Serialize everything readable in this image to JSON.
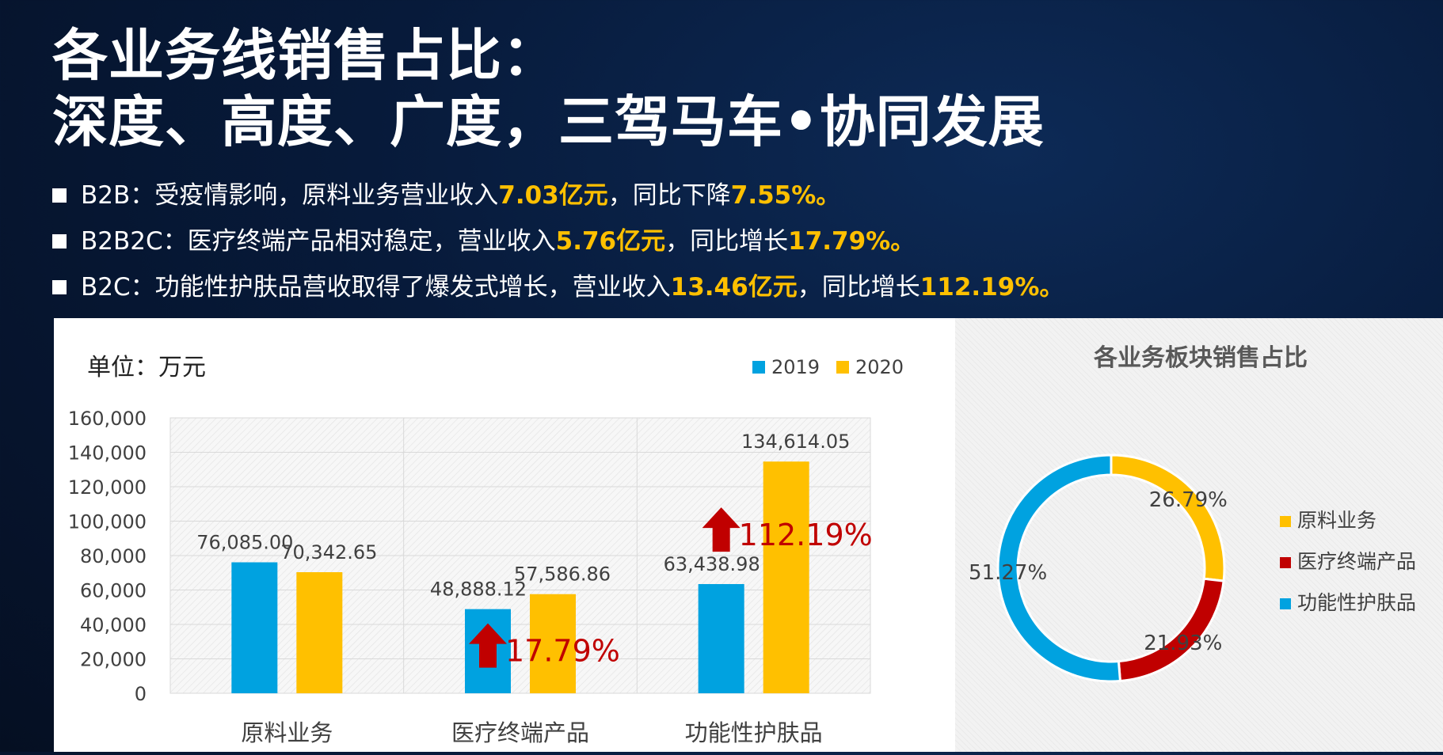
{
  "title_line1": "各业务线销售占比：",
  "title_line2": "深度、高度、广度，三驾马车•协同发展",
  "bullets": [
    {
      "pre": "B2B：受疫情影响，原料业务营业收入",
      "hl1": "7.03亿元",
      "mid": "，同比下降",
      "hl2": "7.55%。"
    },
    {
      "pre": "B2B2C：医疗终端产品相对稳定，营业收入",
      "hl1": "5.76亿元",
      "mid": "，同比增长",
      "hl2": "17.79%。"
    },
    {
      "pre": "B2C：功能性护肤品营收取得了爆发式增长，营业收入",
      "hl1": "13.46亿元",
      "mid": "，同比增长",
      "hl2": "112.19%。"
    }
  ],
  "colors": {
    "c2019": "#00a2e0",
    "c2020": "#ffc000",
    "red": "#c00000",
    "highlight": "#ffc000"
  },
  "chart_data": [
    {
      "type": "bar",
      "unit_label": "单位：万元",
      "categories": [
        "原料业务",
        "医疗终端产品",
        "功能性护肤品"
      ],
      "series": [
        {
          "name": "2019",
          "values": [
            76085.0,
            48888.12,
            63438.98
          ],
          "labels": [
            "76,085.00",
            "48,888.12",
            "63,438.98"
          ]
        },
        {
          "name": "2020",
          "values": [
            70342.65,
            57586.86,
            134614.05
          ],
          "labels": [
            "70,342.65",
            "57,586.86",
            "134,614.05"
          ]
        }
      ],
      "ylim": [
        0,
        160000
      ],
      "yticks": [
        0,
        20000,
        40000,
        60000,
        80000,
        100000,
        120000,
        140000,
        160000
      ],
      "ytick_labels": [
        "0",
        "20,000",
        "40,000",
        "60,000",
        "80,000",
        "100,000",
        "120,000",
        "140,000",
        "160,000"
      ],
      "legend_position": "top-right",
      "grid": true,
      "annotations": [
        {
          "category_index": 1,
          "text": "17.79%",
          "icon": "up-arrow-icon"
        },
        {
          "category_index": 2,
          "text": "112.19%",
          "icon": "up-arrow-icon"
        }
      ]
    },
    {
      "type": "pie",
      "title": "各业务板块销售占比",
      "style": "donut",
      "slices": [
        {
          "name": "原料业务",
          "value": 26.79,
          "label": "26.79%",
          "color": "#ffc000"
        },
        {
          "name": "医疗终端产品",
          "value": 21.93,
          "label": "21.93%",
          "color": "#c00000"
        },
        {
          "name": "功能性护肤品",
          "value": 51.27,
          "label": "51.27%",
          "color": "#00a2e0"
        }
      ],
      "legend_position": "right"
    }
  ]
}
